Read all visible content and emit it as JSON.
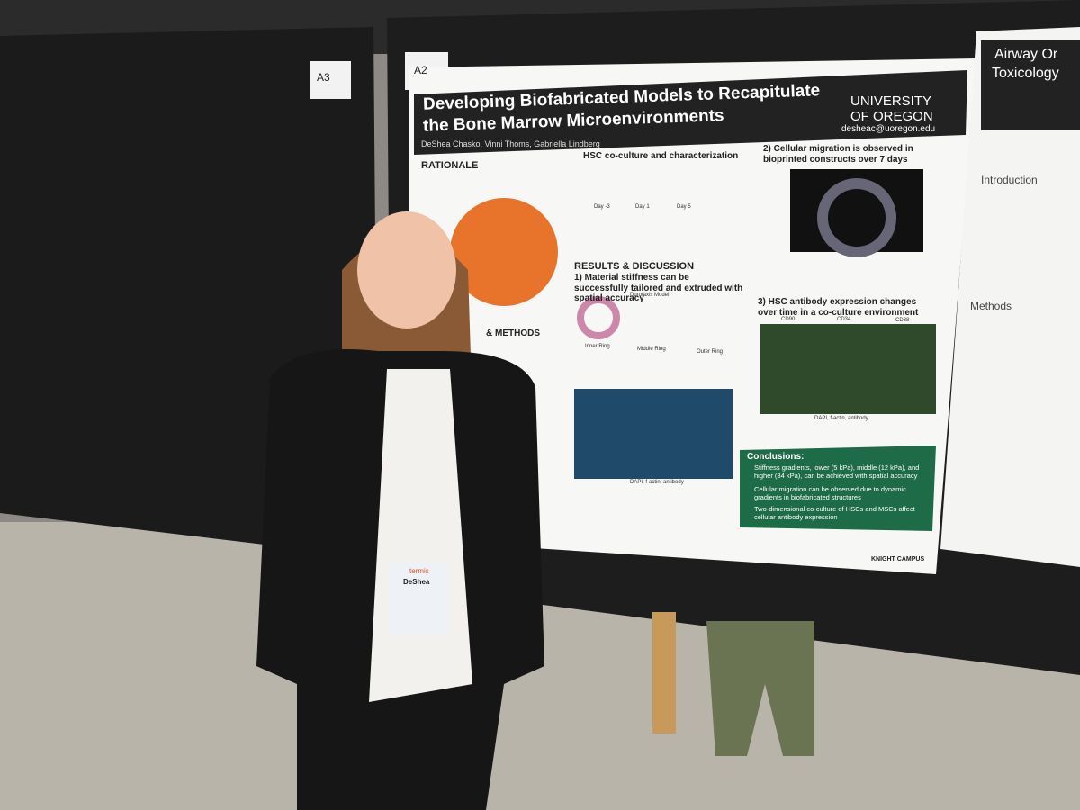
{
  "board_labels": [
    "A3",
    "A2"
  ],
  "poster": {
    "title_lines": [
      "Developing Biofabricated Models to Recapitulate",
      "the Bone Marrow Microenvironments"
    ],
    "authors": "DeShea Chasko, Vinni Thoms, Gabriella Lindberg",
    "university": "UNIVERSITY OF OREGON",
    "email": "desheac@uoregon.edu",
    "rationale": "RATIONALE",
    "coculture": "HSC co-culture and characterization",
    "culture_days": [
      "Day -3",
      "Day 1",
      "Day 5"
    ],
    "migration": "2) Cellular migration is observed in bioprinted constructs over 7 days",
    "results": "RESULTS & DISCUSSION",
    "stiffness": "1) Material stiffness can be successfully tailored and extruded with spatial accuracy",
    "durotaxis": "Durotaxis Model",
    "rings": [
      "Inner Ring",
      "Middle Ring",
      "Outer Ring"
    ],
    "antibody": "3) HSC antibody expression changes over time in a co-culture environment",
    "markers": [
      "CD90",
      "CD34",
      "CD38"
    ],
    "stain": "DAPI, f-actin, antibody",
    "conclusions_title": "Conclusions:",
    "conclusions": [
      "Stiffness gradients, lower (5 kPa), middle (12 kPa), and higher (34 kPa), can be achieved with spatial accuracy",
      "Cellular migration can be observed due to dynamic gradients in biofabricated structures",
      "Two-dimensional co-culture of HSCs and MSCs affect cellular antibody expression"
    ],
    "methods": "& METHODS",
    "footer": "KNIGHT CAMPUS"
  },
  "side_poster": {
    "title_lines": [
      "Airway Or",
      "Toxicology"
    ],
    "sections": [
      "Introduction",
      "Methods"
    ]
  },
  "badge": {
    "brand": "termis",
    "name": "DeShea"
  }
}
